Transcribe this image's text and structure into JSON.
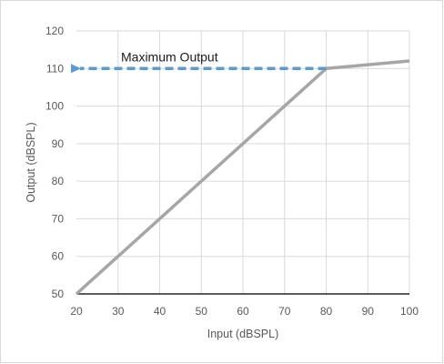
{
  "chart_data": {
    "type": "line",
    "xlabel": "Input (dBSPL)",
    "ylabel": "Output (dBSPL)",
    "xlim": [
      20,
      100
    ],
    "ylim": [
      50,
      120
    ],
    "x_ticks": [
      20,
      30,
      40,
      50,
      60,
      70,
      80,
      90,
      100
    ],
    "y_ticks": [
      50,
      60,
      70,
      80,
      90,
      100,
      110,
      120
    ],
    "grid": "vertical and horizontal",
    "legend": "none",
    "series": [
      {
        "x": [
          20,
          80,
          100
        ],
        "y": [
          50,
          110,
          112
        ],
        "color": "#a6a6a6"
      }
    ],
    "annotations": [
      {
        "label": "Maximum Output",
        "kind": "dashed-arrow",
        "from": [
          80,
          110
        ],
        "to": [
          20,
          110
        ],
        "color": "#5b9bd5"
      }
    ]
  }
}
